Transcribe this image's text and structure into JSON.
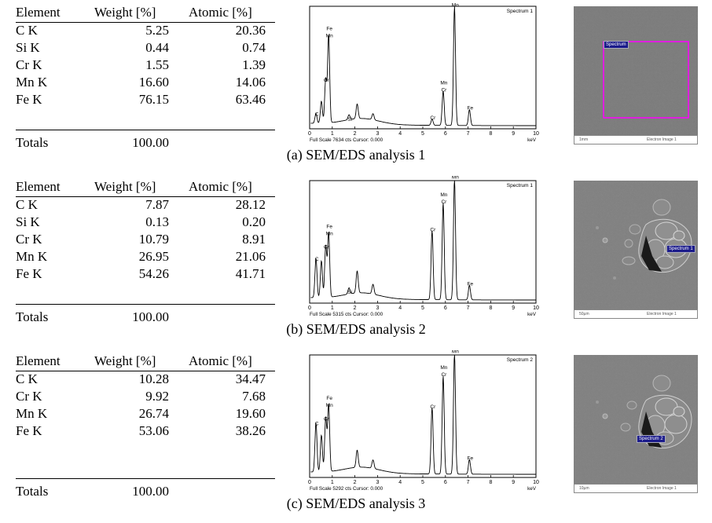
{
  "headers": {
    "element": "Element",
    "weight": "Weight [%]",
    "atomic": "Atomic [%]"
  },
  "totals_label": "Totals",
  "panels": [
    {
      "caption": "(a) SEM/EDS analysis 1",
      "rows": [
        {
          "el": "C K",
          "wt": "5.25",
          "at": "20.36"
        },
        {
          "el": "Si K",
          "wt": "0.44",
          "at": "0.74"
        },
        {
          "el": "Cr K",
          "wt": "1.55",
          "at": "1.39"
        },
        {
          "el": "Mn K",
          "wt": "16.60",
          "at": "14.06"
        },
        {
          "el": "Fe K",
          "wt": "76.15",
          "at": "63.46"
        }
      ],
      "total": "100.00",
      "spectrum": {
        "title": "Spectrum 1",
        "footer": "Full Scale 7634 cts Cursor: 0.000",
        "unit": "keV"
      },
      "sem": {
        "tag": "Spectrum",
        "scale": "1mm",
        "label": "Electron Image 1"
      }
    },
    {
      "caption": "(b) SEM/EDS analysis 2",
      "rows": [
        {
          "el": "C K",
          "wt": "7.87",
          "at": "28.12"
        },
        {
          "el": "Si K",
          "wt": "0.13",
          "at": "0.20"
        },
        {
          "el": "Cr K",
          "wt": "10.79",
          "at": "8.91"
        },
        {
          "el": "Mn K",
          "wt": "26.95",
          "at": "21.06"
        },
        {
          "el": "Fe K",
          "wt": "54.26",
          "at": "41.71"
        }
      ],
      "total": "100.00",
      "spectrum": {
        "title": "Spectrum 1",
        "footer": "Full Scale 5315 cts Cursor: 0.000",
        "unit": "keV"
      },
      "sem": {
        "tag": "Spectrum 1",
        "scale": "50µm",
        "label": "Electron Image 1"
      }
    },
    {
      "caption": "(c) SEM/EDS analysis 3",
      "rows": [
        {
          "el": "C K",
          "wt": "10.28",
          "at": "34.47"
        },
        {
          "el": "Cr K",
          "wt": "9.92",
          "at": "7.68"
        },
        {
          "el": "Mn K",
          "wt": "26.74",
          "at": "19.60"
        },
        {
          "el": "Fe K",
          "wt": "53.06",
          "at": "38.26"
        }
      ],
      "total": "100.00",
      "spectrum": {
        "title": "Spectrum 2",
        "footer": "Full Scale 5292 cts Cursor: 0.000",
        "unit": "keV"
      },
      "sem": {
        "tag": "Spectrum 2",
        "scale": "10µm",
        "label": "Electron Image 1"
      }
    }
  ],
  "spectrum_axis": {
    "ticks": [
      "0",
      "1",
      "2",
      "3",
      "4",
      "5",
      "6",
      "7",
      "8",
      "9",
      "10"
    ]
  },
  "colors": {
    "frame": "#ff00ff",
    "sem_gray": "#7c7c7c"
  }
}
